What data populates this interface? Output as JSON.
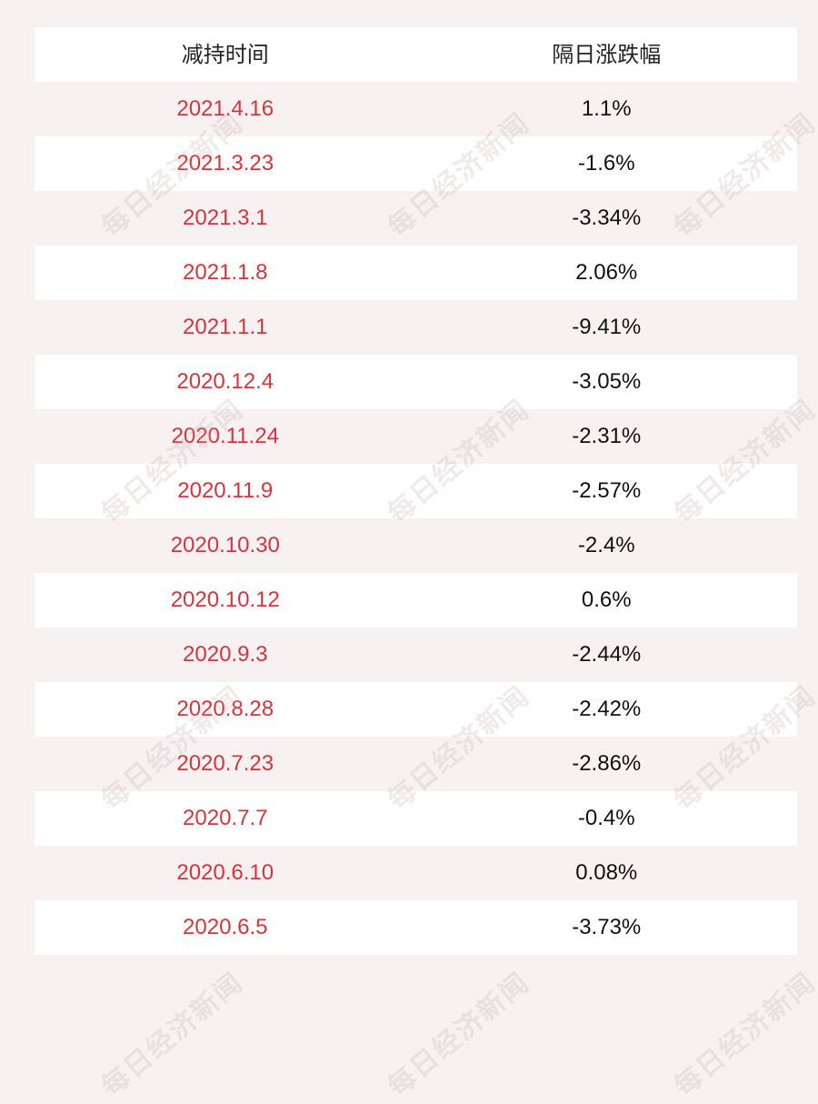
{
  "header": {
    "col1": "减持时间",
    "col2": "隔日涨跌幅"
  },
  "rows": [
    {
      "date": "2021.4.16",
      "change": "1.1%"
    },
    {
      "date": "2021.3.23",
      "change": "-1.6%"
    },
    {
      "date": "2021.3.1",
      "change": "-3.34%"
    },
    {
      "date": "2021.1.8",
      "change": "2.06%"
    },
    {
      "date": "2021.1.1",
      "change": "-9.41%"
    },
    {
      "date": "2020.12.4",
      "change": "-3.05%"
    },
    {
      "date": "2020.11.24",
      "change": "-2.31%"
    },
    {
      "date": "2020.11.9",
      "change": "-2.57%"
    },
    {
      "date": "2020.10.30",
      "change": "-2.4%"
    },
    {
      "date": "2020.10.12",
      "change": "0.6%"
    },
    {
      "date": "2020.9.3",
      "change": "-2.44%"
    },
    {
      "date": "2020.8.28",
      "change": "-2.42%"
    },
    {
      "date": "2020.7.23",
      "change": "-2.86%"
    },
    {
      "date": "2020.7.7",
      "change": "-0.4%"
    },
    {
      "date": "2020.6.10",
      "change": "0.08%"
    },
    {
      "date": "2020.6.5",
      "change": "-3.73%"
    }
  ],
  "watermark": {
    "text": "每日经济新闻"
  }
}
